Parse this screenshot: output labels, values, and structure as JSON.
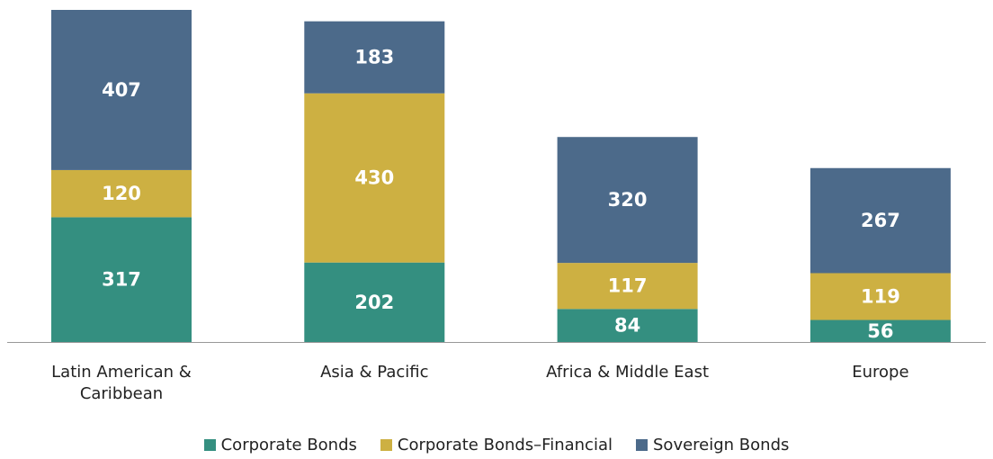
{
  "chart_data": {
    "type": "bar",
    "stacked": true,
    "categories": [
      "Latin American & Caribbean",
      "Asia & Pacific",
      "Africa & Middle East",
      "Europe"
    ],
    "series": [
      {
        "name": "Corporate Bonds",
        "color": "#348f80",
        "values": [
          317,
          202,
          84,
          56
        ]
      },
      {
        "name": "Corporate Bonds–Financial",
        "color": "#cdb042",
        "values": [
          120,
          430,
          117,
          119
        ]
      },
      {
        "name": "Sovereign Bonds",
        "color": "#4c6a8a",
        "values": [
          407,
          183,
          320,
          267
        ]
      }
    ],
    "legend": "bottom"
  }
}
